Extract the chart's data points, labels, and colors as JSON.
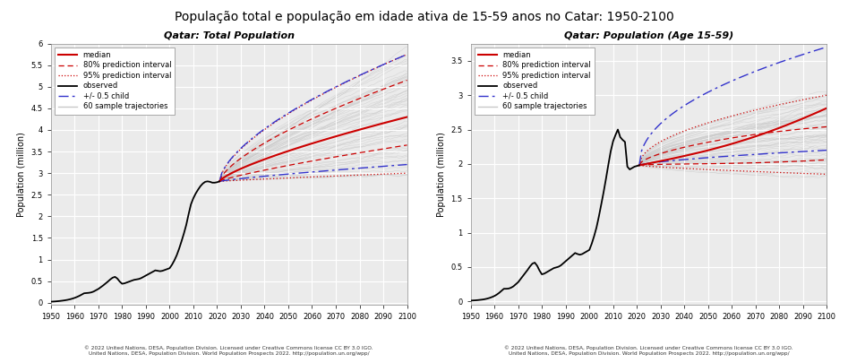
{
  "title": "População total e população em idade ativa de 15-59 anos no Catar: 1950-2100",
  "title_fontsize": 10,
  "subplot1_title": "Qatar: Total Population",
  "subplot2_title": "Qatar: Population (Age 15-59)",
  "ylabel": "Population (million)",
  "xlabel_ticks": [
    1950,
    1960,
    1970,
    1980,
    1990,
    2000,
    2010,
    2020,
    2030,
    2040,
    2050,
    2060,
    2070,
    2080,
    2090,
    2100
  ],
  "ylim1": [
    -0.05,
    6.0
  ],
  "ylim2": [
    -0.05,
    3.75
  ],
  "yticks1": [
    0,
    0.5,
    1.0,
    1.5,
    2.0,
    2.5,
    3.0,
    3.5,
    4.0,
    4.5,
    5.0,
    5.5,
    6.0
  ],
  "yticks2": [
    0,
    0.5,
    1.0,
    1.5,
    2.0,
    2.5,
    3.0,
    3.5
  ],
  "xlim": [
    1950,
    2100
  ],
  "background_color": "#ffffff",
  "plot_bg_color": "#ebebeb",
  "grid_color": "#ffffff",
  "footer_text1": "© 2022 United Nations, DESA, Population Division. Licensed under Creative Commons license CC BY 3.0 IGO.",
  "footer_text2": "United Nations, DESA, Population Division. World Population Prospects 2022. http://population.un.org/wpp/",
  "legend_items": [
    "median",
    "80% prediction interval",
    "95% prediction interval",
    "observed",
    "+/- 0.5 child",
    "60 sample trajectories"
  ],
  "colors": {
    "median": "#cc0000",
    "pred80": "#cc0000",
    "pred95": "#cc0000",
    "observed": "#000000",
    "child": "#3333cc",
    "trajectories": "#c8c8c8"
  }
}
